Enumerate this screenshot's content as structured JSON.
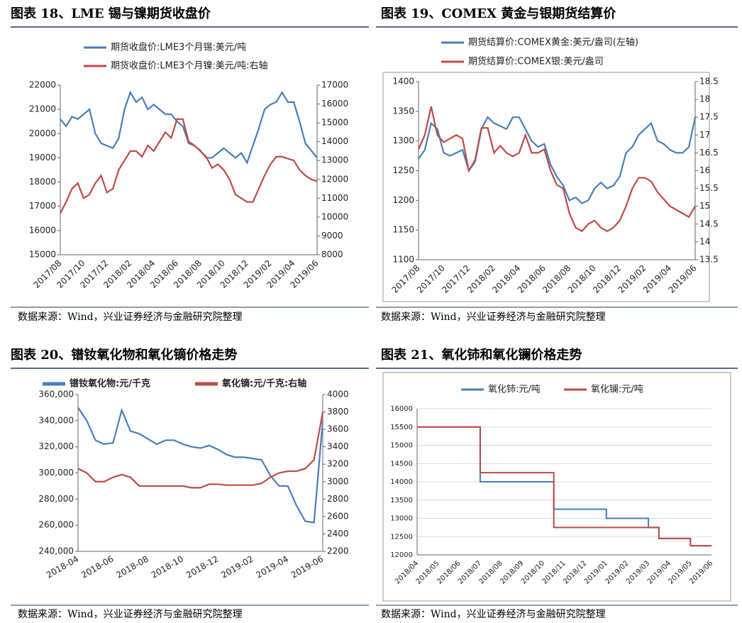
{
  "chart_data": [
    {
      "type": "line",
      "title": "图表 18、LME 锡与镍期货收盘价",
      "source": "数据来源：Wind，兴业证券经济与金融研究院整理",
      "grid": false,
      "categories": [
        "2017/08",
        null,
        null,
        null,
        "2017/10",
        null,
        null,
        null,
        "2017/12",
        null,
        null,
        null,
        "2018/02",
        null,
        null,
        null,
        "2018/04",
        null,
        null,
        null,
        "2018/06",
        null,
        null,
        null,
        "2018/08",
        null,
        null,
        null,
        "2018/10",
        null,
        null,
        null,
        "2018/12",
        null,
        null,
        null,
        "2019/02",
        null,
        null,
        null,
        "2019/04",
        null,
        null,
        null,
        "2019/06"
      ],
      "ylim": [
        15000,
        22000
      ],
      "yticks": [
        15000,
        16000,
        17000,
        18000,
        19000,
        20000,
        21000,
        22000
      ],
      "y2lim": [
        8000,
        17000
      ],
      "y2ticks": [
        8000,
        9000,
        10000,
        11000,
        12000,
        13000,
        14000,
        15000,
        16000,
        17000
      ],
      "series": [
        {
          "name": "期货收盘价:LME3个月锡:美元/吨",
          "color": "#4a7ebb",
          "values": [
            20600,
            20300,
            20700,
            20600,
            20800,
            21000,
            20000,
            19600,
            19500,
            19400,
            19800,
            21000,
            21700,
            21300,
            21500,
            21000,
            21200,
            21000,
            20800,
            20800,
            20500,
            20300,
            19600,
            19500,
            19300,
            19000,
            19000,
            19200,
            19400,
            19200,
            19000,
            19200,
            18800,
            19500,
            20200,
            21000,
            21200,
            21300,
            21700,
            21300,
            21300,
            20500,
            19600,
            19300,
            19000
          ]
        },
        {
          "name": "期货收盘价:LME3个月镍:美元/吨:右轴",
          "color": "#be4b48",
          "axis": "y2",
          "values": [
            10200,
            10800,
            11500,
            11800,
            11000,
            11200,
            11800,
            12200,
            11300,
            11500,
            12500,
            13000,
            13500,
            13500,
            13200,
            13800,
            13500,
            14000,
            14500,
            14200,
            15200,
            15200,
            14000,
            13800,
            13500,
            13200,
            12600,
            12800,
            12500,
            12000,
            11200,
            11000,
            10800,
            10800,
            11500,
            12200,
            12800,
            13200,
            13200,
            13100,
            13000,
            12500,
            12200,
            12000,
            11900
          ]
        }
      ]
    },
    {
      "type": "line",
      "title": "图表 19、COMEX 黄金与银期货结算价",
      "source": "数据来源：Wind，兴业证券经济与金融研究院整理",
      "grid": false,
      "categories": [
        "2017/08",
        null,
        null,
        null,
        "2017/10",
        null,
        null,
        null,
        "2017/12",
        null,
        null,
        null,
        "2018/02",
        null,
        null,
        null,
        "2018/04",
        null,
        null,
        null,
        "2018/06",
        null,
        null,
        null,
        "2018/08",
        null,
        null,
        null,
        "2018/10",
        null,
        null,
        null,
        "2018/12",
        null,
        null,
        null,
        "2019/02",
        null,
        null,
        null,
        "2019/04",
        null,
        null,
        null,
        "2019/06"
      ],
      "ylim": [
        1100,
        1400
      ],
      "yticks": [
        1100,
        1150,
        1200,
        1250,
        1300,
        1350,
        1400
      ],
      "y2lim": [
        13.5,
        18.5
      ],
      "y2ticks": [
        13.5,
        14,
        14.5,
        15,
        15.5,
        16,
        16.5,
        17,
        17.5,
        18,
        18.5
      ],
      "series": [
        {
          "name": "期货结算价:COMEX黄金:美元/盎司(左轴)",
          "color": "#4a7ebb",
          "values": [
            1270,
            1285,
            1330,
            1320,
            1280,
            1275,
            1280,
            1285,
            1250,
            1265,
            1320,
            1340,
            1330,
            1325,
            1320,
            1340,
            1340,
            1320,
            1300,
            1290,
            1295,
            1260,
            1240,
            1225,
            1200,
            1205,
            1195,
            1200,
            1220,
            1230,
            1220,
            1225,
            1240,
            1280,
            1290,
            1310,
            1320,
            1330,
            1300,
            1295,
            1285,
            1280,
            1280,
            1290,
            1340
          ]
        },
        {
          "name": "期货结算价:COMEX银:美元/盎司",
          "color": "#be4b48",
          "axis": "y2",
          "values": [
            16.6,
            17.0,
            17.8,
            17.0,
            16.8,
            16.9,
            17.0,
            16.9,
            16.0,
            16.3,
            17.2,
            17.2,
            16.5,
            16.7,
            16.5,
            16.4,
            16.5,
            17.0,
            16.5,
            16.5,
            16.6,
            16.0,
            15.6,
            15.5,
            14.8,
            14.4,
            14.3,
            14.5,
            14.6,
            14.4,
            14.3,
            14.4,
            14.6,
            15.0,
            15.5,
            15.8,
            15.8,
            15.7,
            15.4,
            15.2,
            15.0,
            14.9,
            14.8,
            14.7,
            15.0
          ]
        }
      ]
    },
    {
      "type": "line",
      "title": "图表 20、镨钕氧化物和氧化镝价格走势",
      "source": "数据来源：Wind，兴业证券经济与金融研究院整理",
      "grid": false,
      "categories": [
        "2018-04",
        null,
        null,
        null,
        "2018-06",
        null,
        null,
        null,
        "2018-08",
        null,
        null,
        null,
        "2018-10",
        null,
        null,
        null,
        "2018-12",
        null,
        null,
        null,
        "2019-02",
        null,
        null,
        null,
        "2019-04",
        null,
        null,
        null,
        "2019-06"
      ],
      "ylim": [
        240000,
        360000
      ],
      "yticks": [
        {
          "value": 240000,
          "label": "240,000"
        },
        {
          "value": 260000,
          "label": "260,000"
        },
        {
          "value": 280000,
          "label": "280,000"
        },
        {
          "value": 300000,
          "label": "300,000"
        },
        {
          "value": 320000,
          "label": "320,000"
        },
        {
          "value": 340000,
          "label": "340,000"
        },
        {
          "value": 360000,
          "label": "360,000"
        }
      ],
      "y2lim": [
        2200,
        4000
      ],
      "y2ticks": [
        2200,
        2400,
        2600,
        2800,
        3000,
        3200,
        3400,
        3600,
        3800,
        4000
      ],
      "series": [
        {
          "name": "镨钕氧化物:元/千克",
          "color": "#4a7ebb",
          "values": [
            350000,
            340000,
            325000,
            322000,
            323000,
            348000,
            332000,
            330000,
            326000,
            322000,
            325000,
            325000,
            322000,
            320000,
            319000,
            321000,
            318000,
            314000,
            312000,
            312000,
            311000,
            310000,
            298000,
            290000,
            290000,
            275000,
            263000,
            262000,
            340000
          ]
        },
        {
          "name": "氧化镝:元/千克:右轴",
          "color": "#be4b48",
          "axis": "y2",
          "values": [
            3150,
            3100,
            3000,
            3000,
            3050,
            3080,
            3050,
            2950,
            2950,
            2950,
            2950,
            2950,
            2950,
            2930,
            2930,
            2970,
            2970,
            2960,
            2960,
            2960,
            2960,
            2980,
            3050,
            3100,
            3120,
            3120,
            3150,
            3250,
            3800
          ]
        }
      ]
    },
    {
      "type": "step",
      "title": "图表 21、氧化铈和氧化镧价格走势",
      "source": "数据来源：Wind，兴业证券经济与金融研究院整理",
      "grid": true,
      "categories": [
        "2018/04",
        null,
        "2018/05",
        null,
        "2018/06",
        null,
        "2018/07",
        null,
        "2018/08",
        null,
        "2018/09",
        null,
        "2018/10",
        null,
        "2018/11",
        null,
        "2018/12",
        null,
        "2019/01",
        null,
        "2019/02",
        null,
        "2019/03",
        null,
        "2019/04",
        null,
        "2019/05",
        null,
        "2019/06"
      ],
      "ylim": [
        12000,
        16000
      ],
      "yticks": [
        12000,
        12500,
        13000,
        13500,
        14000,
        14500,
        15000,
        15500,
        16000
      ],
      "series": [
        {
          "name": "氧化铈:元/吨",
          "color": "#4a7ebb",
          "values": [
            15500,
            15500,
            15500,
            15500,
            15500,
            15500,
            14000,
            14000,
            14000,
            14000,
            14000,
            14000,
            14000,
            13250,
            13250,
            13250,
            13250,
            13250,
            13000,
            13000,
            13000,
            13000,
            12750,
            12450,
            12450,
            12450,
            12250,
            12250,
            12250
          ]
        },
        {
          "name": "氧化镧:元/吨",
          "color": "#be4b48",
          "values": [
            15500,
            15500,
            15500,
            15500,
            15500,
            15500,
            14250,
            14250,
            14250,
            14250,
            14250,
            14250,
            14250,
            12750,
            12750,
            12750,
            12750,
            12750,
            12750,
            12750,
            12750,
            12750,
            12750,
            12450,
            12450,
            12450,
            12250,
            12250,
            12250
          ]
        }
      ]
    }
  ]
}
